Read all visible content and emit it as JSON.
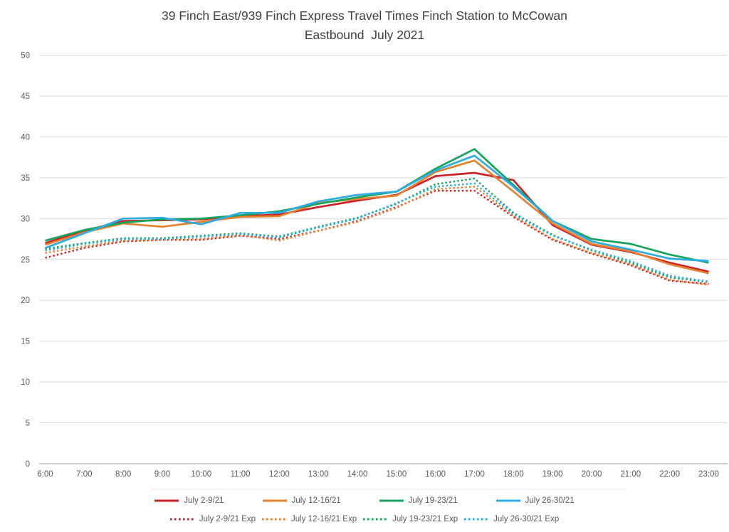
{
  "title": {
    "line1": "39 Finch East/939 Finch Express Travel Times Finch Station to McCowan",
    "line2": "Eastbound  July 2021"
  },
  "axis": {
    "y_tick_labels": [
      "0",
      "5",
      "10",
      "15",
      "20",
      "25",
      "30",
      "35",
      "40",
      "45",
      "50"
    ],
    "x_tick_labels": [
      "6:00",
      "7:00",
      "8:00",
      "9:00",
      "10:00",
      "11:00",
      "12:00",
      "13:00",
      "14:00",
      "15:00",
      "16:00",
      "17:00",
      "18:00",
      "19:00",
      "20:00",
      "21:00",
      "22:00",
      "23:00"
    ]
  },
  "colors": {
    "red": "#CB2229",
    "orange": "#E5822E",
    "green": "#16A35C",
    "blue": "#2BACE2",
    "gridline": "#D9D9D9",
    "axis_line": "#9B9B9B",
    "tick_text": "#595959",
    "title_text": "#3F3F3F"
  },
  "chart_data": {
    "type": "line",
    "title": "39 Finch East/939 Finch Express Travel Times Finch Station to McCowan Eastbound July 2021",
    "xlabel": "",
    "ylabel": "",
    "ylim": [
      0,
      50
    ],
    "y_ticks": [
      0,
      5,
      10,
      15,
      20,
      25,
      30,
      35,
      40,
      45,
      50
    ],
    "grid": "horizontal",
    "legend_position": "bottom",
    "categories": [
      "6:00",
      "7:00",
      "8:00",
      "9:00",
      "10:00",
      "11:00",
      "12:00",
      "13:00",
      "14:00",
      "15:00",
      "16:00",
      "17:00",
      "18:00",
      "19:00",
      "20:00",
      "21:00",
      "22:00",
      "23:00"
    ],
    "series": [
      {
        "name": "July 2-9/21",
        "color": "#CB2229",
        "style": "solid",
        "values": [
          27.0,
          28.5,
          29.7,
          29.8,
          29.9,
          30.3,
          30.5,
          31.4,
          32.2,
          32.9,
          35.2,
          35.6,
          34.7,
          29.2,
          26.8,
          25.9,
          24.6,
          23.5
        ]
      },
      {
        "name": "July 12-16/21",
        "color": "#E5822E",
        "style": "solid",
        "values": [
          26.8,
          28.3,
          29.4,
          29.0,
          29.6,
          30.2,
          30.3,
          31.9,
          32.4,
          32.8,
          35.7,
          37.1,
          33.3,
          29.4,
          26.9,
          26.0,
          24.4,
          23.3
        ]
      },
      {
        "name": "July 19-23/21",
        "color": "#16A35C",
        "style": "solid",
        "values": [
          27.3,
          28.6,
          29.5,
          29.9,
          30.0,
          30.4,
          30.9,
          31.8,
          32.6,
          33.3,
          36.1,
          38.5,
          34.1,
          29.7,
          27.5,
          26.9,
          25.6,
          24.6
        ]
      },
      {
        "name": "July 26-30/21",
        "color": "#2BACE2",
        "style": "solid",
        "values": [
          26.4,
          28.2,
          30.0,
          30.1,
          29.3,
          30.7,
          30.7,
          32.1,
          32.9,
          33.3,
          35.9,
          37.7,
          33.9,
          29.7,
          27.2,
          26.2,
          25.1,
          24.8
        ]
      },
      {
        "name": "July 2-9/21 Exp",
        "color": "#CB2229",
        "style": "dotted",
        "values": [
          25.2,
          26.4,
          27.2,
          27.4,
          27.4,
          27.9,
          27.5,
          28.5,
          29.7,
          31.4,
          33.4,
          33.4,
          30.2,
          27.4,
          25.7,
          24.3,
          22.4,
          22.0
        ]
      },
      {
        "name": "July 12-16/21 Exp",
        "color": "#E5822E",
        "style": "dotted",
        "values": [
          25.8,
          26.6,
          27.3,
          27.4,
          27.5,
          28.0,
          27.3,
          28.5,
          29.6,
          31.3,
          33.6,
          33.9,
          30.3,
          27.5,
          25.8,
          24.4,
          22.5,
          21.9
        ]
      },
      {
        "name": "July 19-23/21 Exp",
        "color": "#16A35C",
        "style": "dotted",
        "values": [
          26.3,
          27.0,
          27.6,
          27.6,
          27.9,
          28.2,
          27.8,
          29.0,
          30.1,
          31.8,
          34.2,
          34.9,
          30.7,
          28.0,
          26.1,
          24.6,
          22.8,
          22.2
        ]
      },
      {
        "name": "July 26-30/21 Exp",
        "color": "#2BACE2",
        "style": "dotted",
        "values": [
          26.1,
          26.9,
          27.5,
          27.5,
          27.8,
          28.1,
          27.7,
          28.9,
          30.0,
          31.9,
          33.9,
          34.3,
          30.5,
          27.9,
          26.2,
          24.8,
          23.0,
          22.3
        ]
      }
    ]
  }
}
